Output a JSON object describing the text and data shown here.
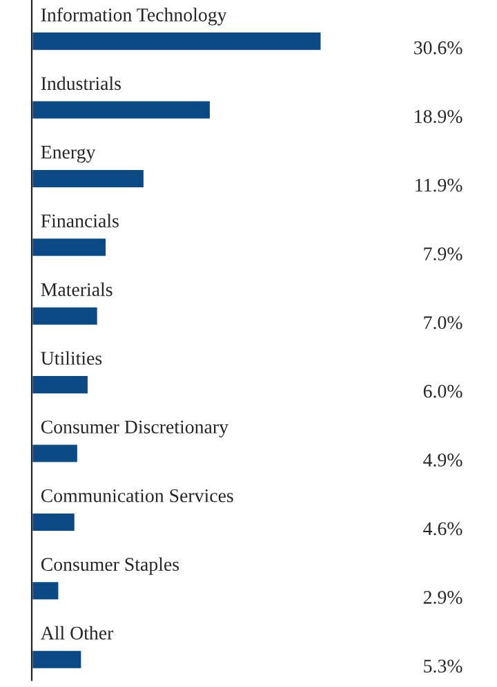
{
  "chart_data": {
    "type": "bar",
    "orientation": "horizontal",
    "categories": [
      "Information Technology",
      "Industrials",
      "Energy",
      "Financials",
      "Materials",
      "Utilities",
      "Consumer Discretionary",
      "Communication Services",
      "Consumer Staples",
      "All Other"
    ],
    "values": [
      30.6,
      18.9,
      11.9,
      7.9,
      7.0,
      6.0,
      4.9,
      4.6,
      2.9,
      5.3
    ],
    "value_labels": [
      "30.6%",
      "18.9%",
      "11.9%",
      "7.9%",
      "7.0%",
      "6.0%",
      "4.9%",
      "4.6%",
      "2.9%",
      "5.3%"
    ],
    "color": "#0b4a85"
  }
}
